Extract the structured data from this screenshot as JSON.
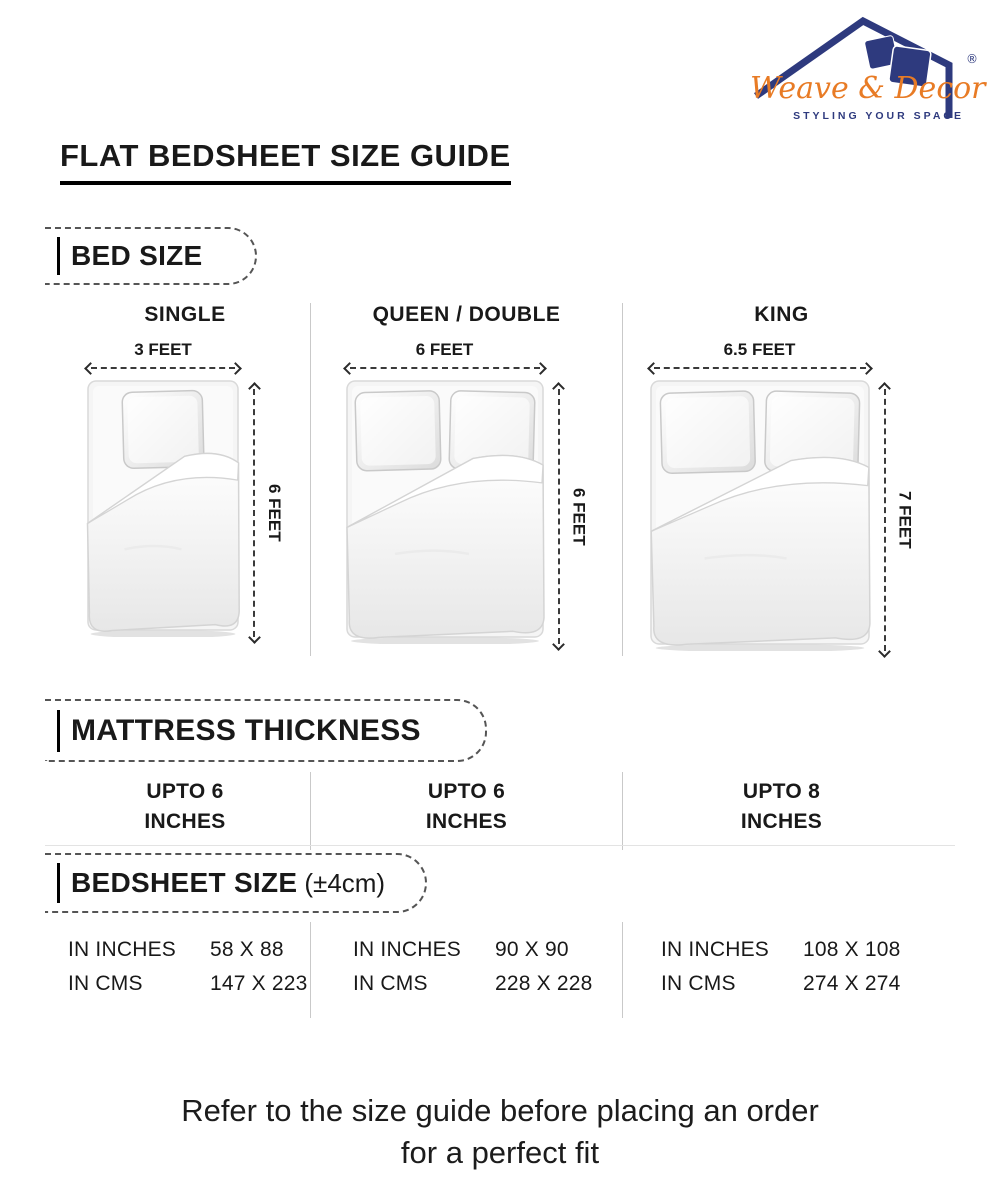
{
  "brand": {
    "name": "Weave & Decor",
    "tagline": "STYLING YOUR SPACE",
    "registered": "®",
    "navy": "#2e3a7e",
    "orange": "#e87b25"
  },
  "title": "FLAT BEDSHEET SIZE GUIDE",
  "section_bed_size": "BED SIZE",
  "section_mattress": "MATTRESS THICKNESS",
  "section_bedsheet": "BEDSHEET SIZE",
  "section_bedsheet_tolerance": "(±4cm)",
  "columns": [
    {
      "name": "SINGLE",
      "width_label": "3 FEET",
      "length_label": "6 FEET",
      "pillows": 1,
      "mattress_thickness": "UPTO 6",
      "mattress_thickness_unit": "INCHES",
      "inches_label": "IN INCHES",
      "inches_value": "58 X 88",
      "cms_label": "IN CMS",
      "cms_value": "147 X 223"
    },
    {
      "name": "QUEEN / DOUBLE",
      "width_label": "6 FEET",
      "length_label": "6 FEET",
      "pillows": 2,
      "mattress_thickness": "UPTO 6",
      "mattress_thickness_unit": "INCHES",
      "inches_label": "IN INCHES",
      "inches_value": "90 X 90",
      "cms_label": "IN CMS",
      "cms_value": "228 X 228"
    },
    {
      "name": "KING",
      "width_label": "6.5 FEET",
      "length_label": "7 FEET",
      "pillows": 2,
      "mattress_thickness": "UPTO 8",
      "mattress_thickness_unit": "INCHES",
      "inches_label": "IN INCHES",
      "inches_value": "108 X 108",
      "cms_label": "IN CMS",
      "cms_value": "274 X 274"
    }
  ],
  "footer_line1": "Refer to the size guide before placing an order",
  "footer_line2": "for a perfect fit"
}
